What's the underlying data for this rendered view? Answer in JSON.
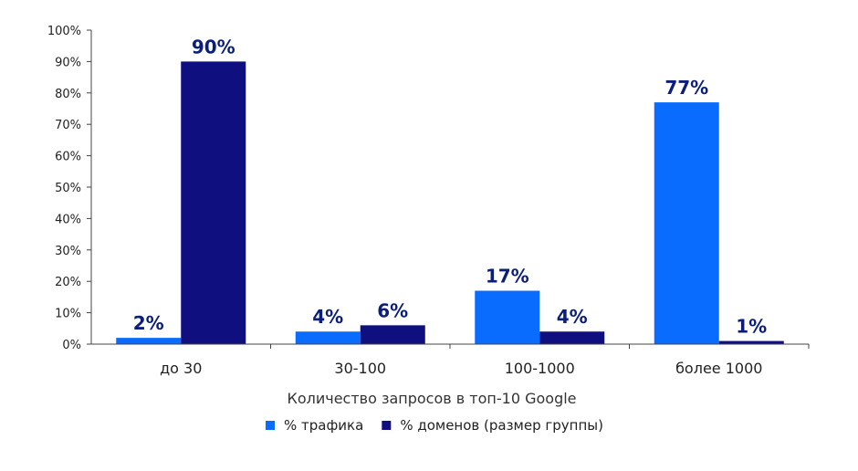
{
  "chart_data": {
    "type": "bar",
    "categories": [
      "до 30",
      "30-100",
      "100-1000",
      "более 1000"
    ],
    "series": [
      {
        "name": "% трафика",
        "values": [
          2,
          4,
          17,
          77
        ],
        "labels": [
          "2%",
          "4%",
          "17%",
          "77%"
        ],
        "color": "#0a6cff"
      },
      {
        "name": "% доменов (размер группы)",
        "values": [
          90,
          6,
          4,
          1
        ],
        "labels": [
          "90%",
          "6%",
          "4%",
          "1%"
        ],
        "color": "#0f0f80"
      }
    ],
    "xlabel": "Количество запросов в топ-10 Google",
    "ylabel": "",
    "ylim": [
      0,
      100
    ],
    "yticks": [
      "0%",
      "10%",
      "20%",
      "30%",
      "40%",
      "50%",
      "60%",
      "70%",
      "80%",
      "90%",
      "100%"
    ],
    "grid": false,
    "legend_position": "bottom"
  }
}
